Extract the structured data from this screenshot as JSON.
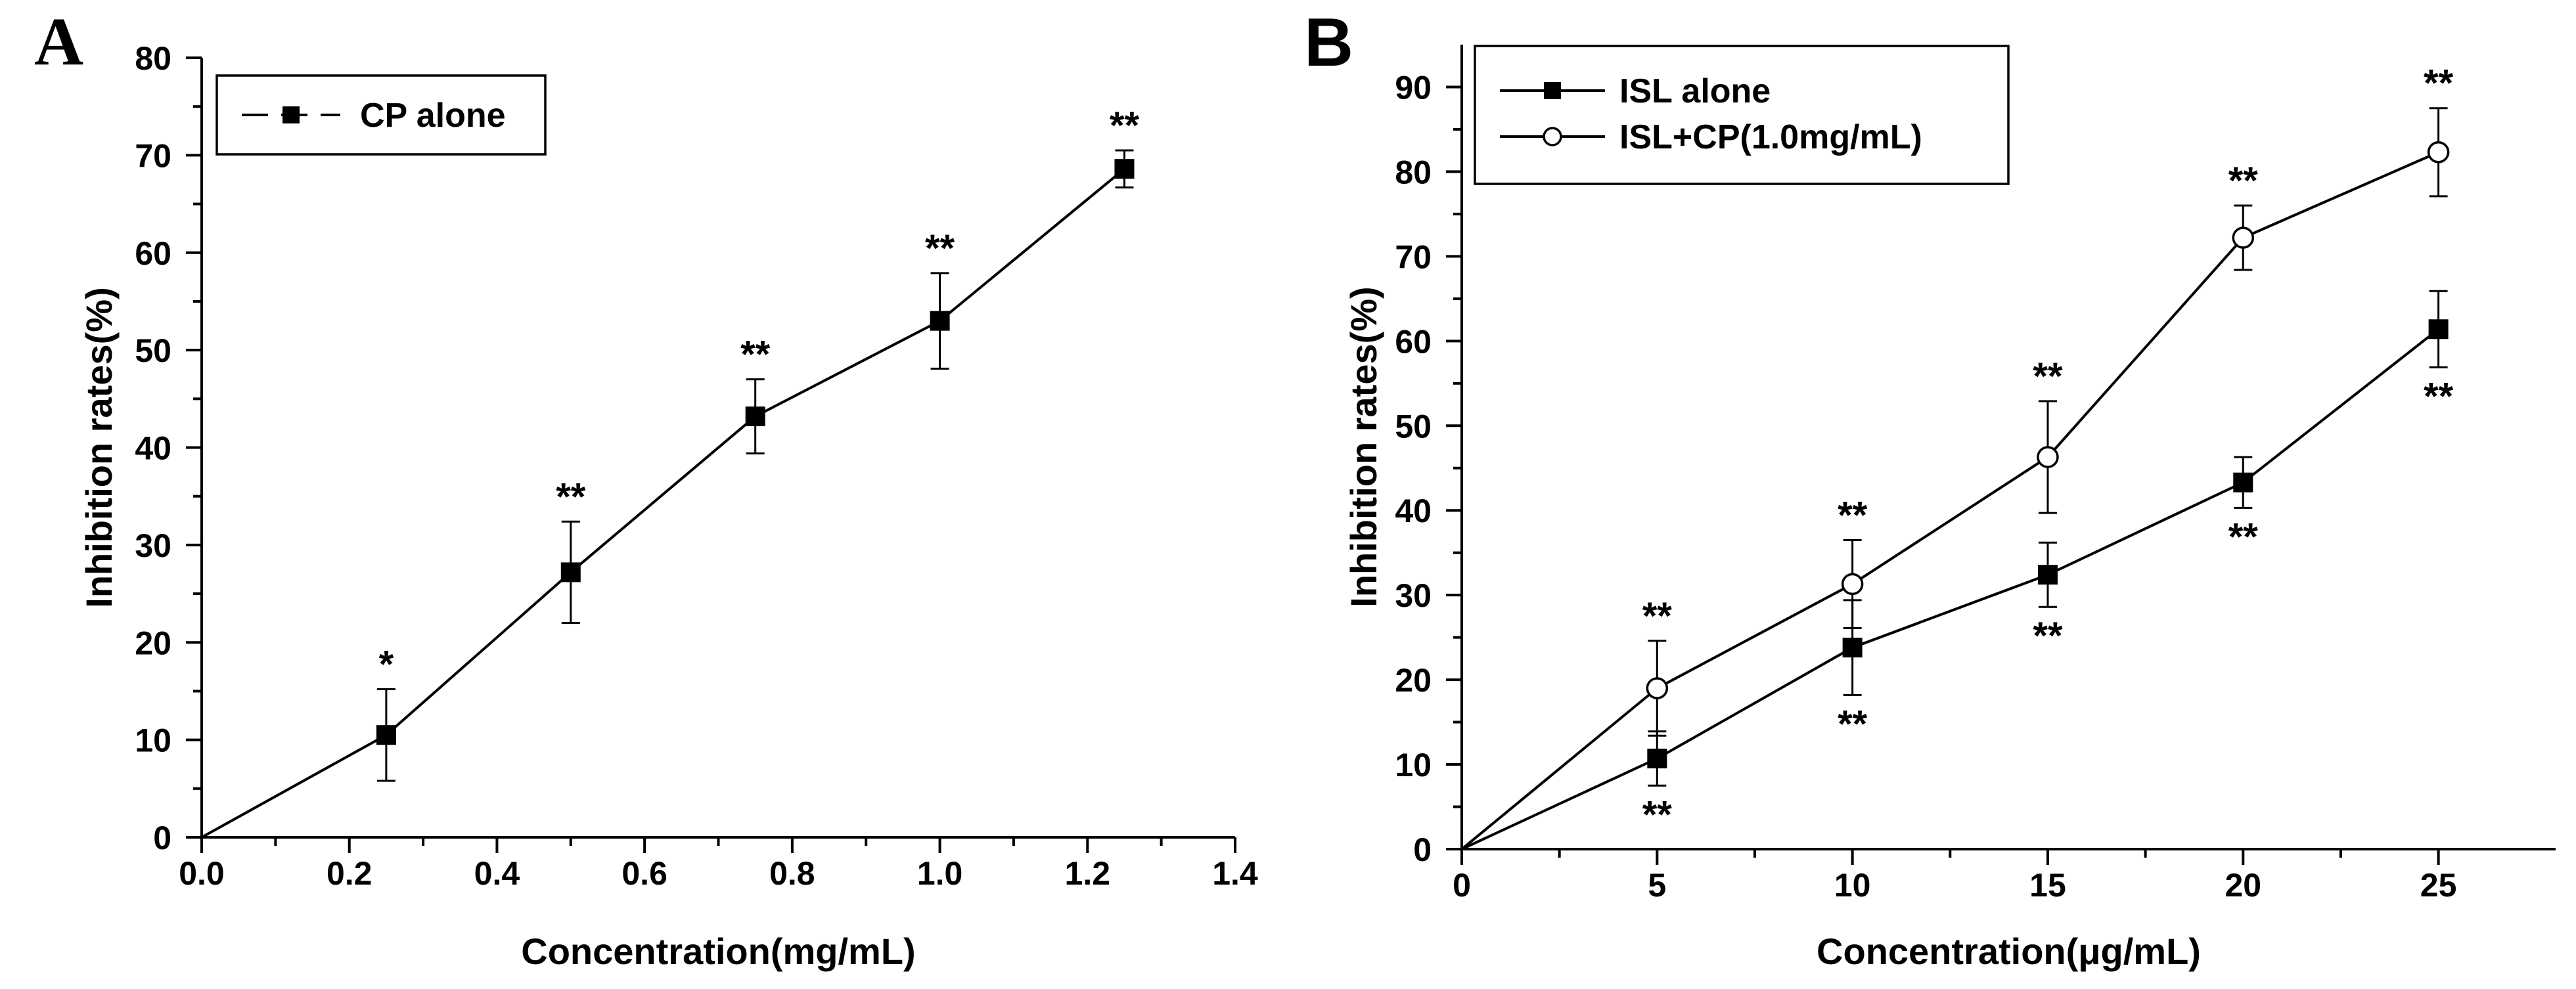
{
  "chart_data": [
    {
      "panel": "A",
      "type": "line",
      "title": "",
      "xlabel": "Concentration(mg/mL)",
      "ylabel": "Inhibition rates(%)",
      "xlim": [
        0.0,
        1.4
      ],
      "ylim": [
        0,
        80
      ],
      "xticks": [
        "0.0",
        "0.2",
        "0.4",
        "0.6",
        "0.8",
        "1.0",
        "1.2",
        "1.4"
      ],
      "yticks": [
        "0",
        "10",
        "20",
        "30",
        "40",
        "50",
        "60",
        "70",
        "80"
      ],
      "grid": false,
      "legend_position": "top-left",
      "series": [
        {
          "name": "CP alone",
          "marker": "filled-square",
          "x": [
            0.0,
            0.25,
            0.5,
            0.75,
            1.0,
            1.25
          ],
          "y": [
            0,
            10.5,
            27.2,
            43.2,
            53.0,
            68.6
          ],
          "err": [
            null,
            4.7,
            5.2,
            3.8,
            4.9,
            1.9
          ],
          "annotations": [
            "",
            "*",
            "**",
            "**",
            "**",
            "**"
          ],
          "annotation_side": "above"
        }
      ]
    },
    {
      "panel": "B",
      "type": "line",
      "title": "",
      "xlabel": "Concentration(μg/mL)",
      "ylabel": "Inhibition rates(%)",
      "xlim": [
        0,
        28
      ],
      "ylim": [
        0,
        95
      ],
      "xticks": [
        "0",
        "5",
        "10",
        "15",
        "20",
        "25"
      ],
      "yticks": [
        "0",
        "10",
        "20",
        "30",
        "40",
        "50",
        "60",
        "70",
        "80",
        "90"
      ],
      "grid": false,
      "legend_position": "top-left",
      "series": [
        {
          "name": "ISL alone",
          "marker": "filled-square",
          "x": [
            0,
            5,
            10,
            15,
            20,
            25
          ],
          "y": [
            0,
            10.7,
            23.8,
            32.4,
            43.3,
            61.4
          ],
          "err": [
            null,
            3.2,
            5.6,
            3.8,
            3.0,
            4.5
          ],
          "annotations": [
            "",
            "**",
            "**",
            "**",
            "**",
            "**"
          ],
          "annotation_side": "below"
        },
        {
          "name": "ISL+CP(1.0mg/mL)",
          "marker": "open-circle",
          "x": [
            0,
            5,
            10,
            15,
            20,
            25
          ],
          "y": [
            0,
            19.0,
            31.3,
            46.3,
            72.2,
            82.3
          ],
          "err": [
            null,
            5.6,
            5.2,
            6.6,
            3.8,
            5.2
          ],
          "annotations": [
            "",
            "**",
            "**",
            "**",
            "**",
            "**"
          ],
          "annotation_side": "above"
        }
      ]
    }
  ]
}
